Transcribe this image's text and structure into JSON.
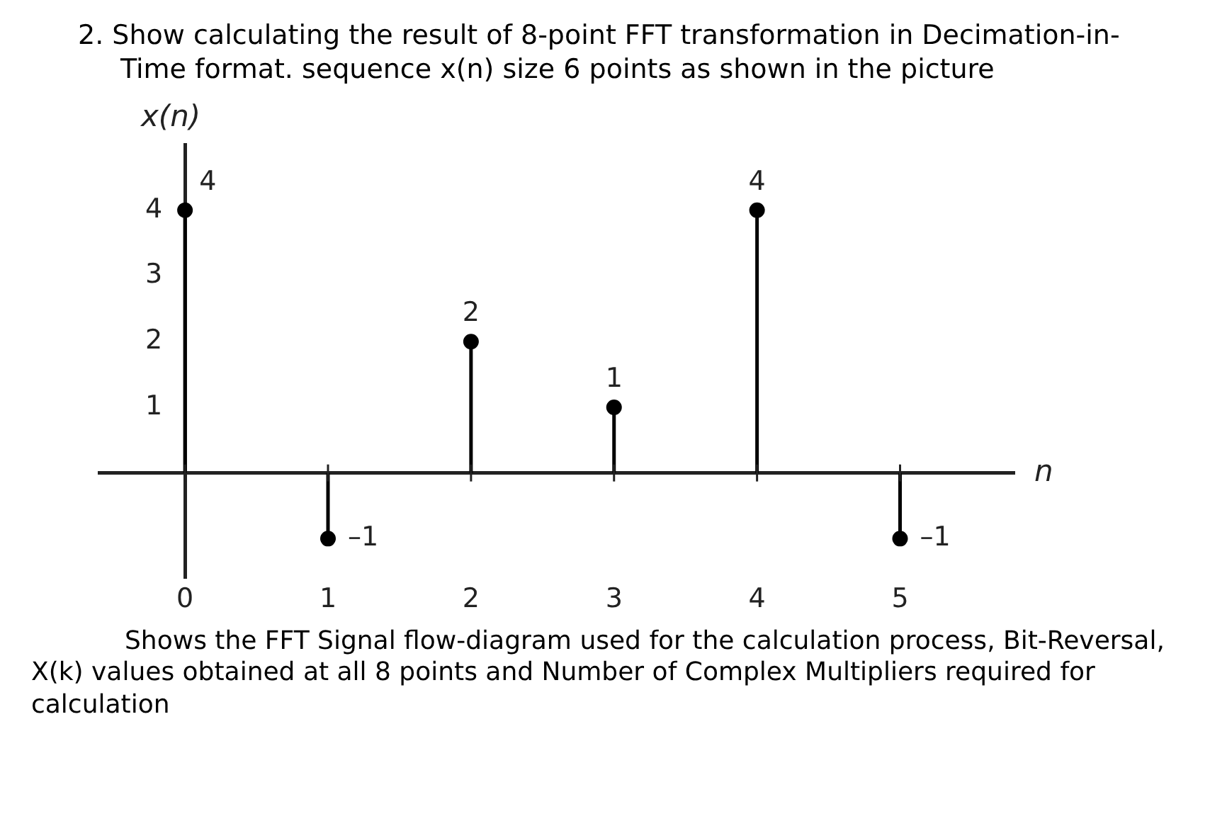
{
  "chart_data": {
    "type": "lollipop",
    "title": "2. Show calculating the result of 8-point FFT transformation in Decimation-in-Time format. sequence x(n) size 6 points as shown in the picture",
    "xlabel": "n",
    "ylabel": "x(n)",
    "x": [
      0,
      1,
      2,
      3,
      4,
      5
    ],
    "values": [
      4,
      -1,
      2,
      1,
      4,
      -1
    ],
    "value_labels": [
      "4",
      "–1",
      "2",
      "1",
      "4",
      "–1"
    ],
    "color": "#000000",
    "marker": "circle",
    "xlim": [
      -0.6,
      5.8
    ],
    "xticks": [
      0,
      1,
      2,
      3,
      4,
      5
    ],
    "ylim": [
      -1.6,
      5
    ],
    "yticks": [
      1,
      2,
      3,
      4
    ],
    "grid": false,
    "annotations": [
      "Shows the FFT Signal flow-diagram used for the calculation process, Bit-Reversal, X(k) values obtained at all 8 points and Number of Complex Multipliers required for calculation"
    ]
  }
}
